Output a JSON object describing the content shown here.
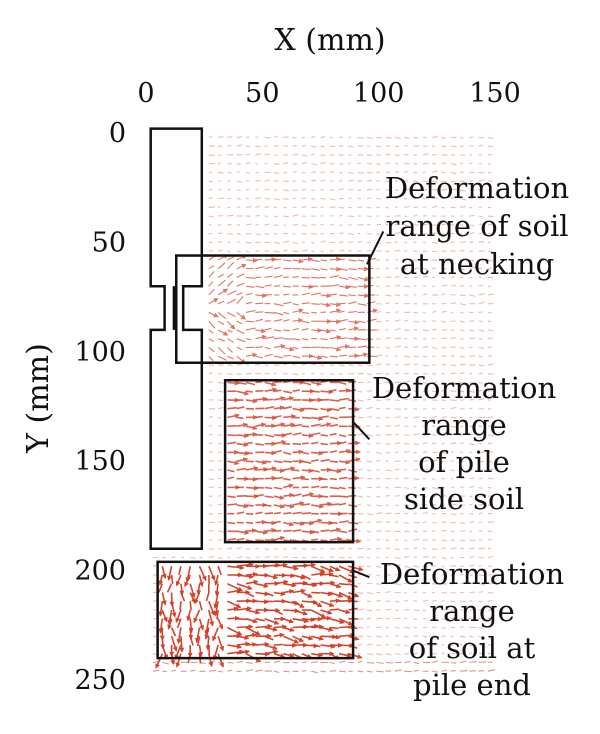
{
  "chart_data": {
    "type": "vector-field",
    "xlabel": "X (mm)",
    "ylabel": "Y (mm)",
    "xlim": [
      0,
      150
    ],
    "ylim": [
      0,
      250
    ],
    "x_axis_position": "top",
    "y_axis_inverted": true,
    "grid": false,
    "xticks": [
      {
        "value": 0,
        "label": "0"
      },
      {
        "value": 50,
        "label": "50"
      },
      {
        "value": 100,
        "label": "100"
      },
      {
        "value": 150,
        "label": "150"
      }
    ],
    "yticks": [
      {
        "value": 0,
        "label": "0"
      },
      {
        "value": 50,
        "label": "50"
      },
      {
        "value": 100,
        "label": "100"
      },
      {
        "value": 150,
        "label": "150"
      },
      {
        "value": 200,
        "label": "200"
      },
      {
        "value": 250,
        "label": "250"
      }
    ],
    "vector_color": "#d23a22",
    "pile_outline": [
      [
        2,
        -2
      ],
      [
        24,
        -2
      ],
      [
        24,
        70
      ],
      [
        16,
        70
      ],
      [
        16,
        90
      ],
      [
        24,
        90
      ],
      [
        24,
        190
      ],
      [
        2,
        190
      ],
      [
        2,
        90
      ],
      [
        8,
        90
      ],
      [
        8,
        70
      ],
      [
        2,
        70
      ]
    ],
    "pile_neck_lines": [
      {
        "x": 12,
        "y0": 70,
        "y1": 90
      }
    ],
    "regions": [
      {
        "name": "necking",
        "x0": 13,
        "x1": 96,
        "y0": 56,
        "y1": 105
      },
      {
        "name": "pile-side",
        "x0": 34,
        "x1": 89,
        "y0": 113,
        "y1": 187
      },
      {
        "name": "pile-end",
        "x0": 5,
        "x1": 89,
        "y0": 196,
        "y1": 240
      }
    ],
    "annotations": [
      {
        "region": "necking",
        "lines": [
          "Deformation",
          "range of soil",
          "at necking"
        ],
        "pointer": [
          [
            102,
            45
          ],
          [
            95,
            60
          ]
        ]
      },
      {
        "region": "pile-side",
        "lines": [
          "Deformation",
          "range",
          "of pile",
          "side soil"
        ],
        "pointer": [
          [
            96,
            140
          ],
          [
            89,
            132
          ]
        ]
      },
      {
        "region": "pile-end",
        "lines": [
          "Deformation",
          "range",
          "of soil at",
          "pile end"
        ],
        "pointer": [
          [
            96,
            203
          ],
          [
            89,
            200
          ]
        ]
      }
    ]
  }
}
